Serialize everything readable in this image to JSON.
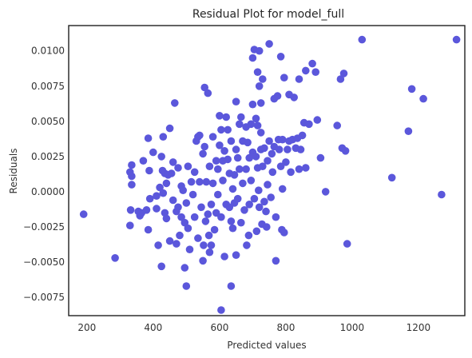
{
  "chart_data": {
    "type": "scatter",
    "title": "Residual Plot for model_full",
    "xlabel": "Predicted values",
    "ylabel": "Residuals",
    "xlim": [
      145,
      1340
    ],
    "ylim": [
      -0.0088,
      0.0118
    ],
    "xticks": [
      200,
      400,
      600,
      800,
      1000,
      1200
    ],
    "xtick_labels": [
      "200",
      "400",
      "600",
      "800",
      "1000",
      "1200"
    ],
    "yticks": [
      -0.0075,
      -0.005,
      -0.0025,
      0.0,
      0.0025,
      0.005,
      0.0075,
      0.01
    ],
    "ytick_labels": [
      "−0.0075",
      "−0.0050",
      "−0.0025",
      "0.0000",
      "0.0025",
      "0.0050",
      "0.0075",
      "0.0100"
    ],
    "grid": false,
    "marker_color": "#5b57db",
    "series": [
      {
        "points": [
          [
            190,
            -0.0016
          ],
          [
            285,
            -0.0047
          ],
          [
            330,
            -0.0024
          ],
          [
            330,
            0.0014
          ],
          [
            332,
            -0.0013
          ],
          [
            335,
            0.0005
          ],
          [
            335,
            0.0011
          ],
          [
            335,
            0.0019
          ],
          [
            355,
            -0.0014
          ],
          [
            360,
            -0.0017
          ],
          [
            365,
            -0.0015
          ],
          [
            370,
            0.0022
          ],
          [
            380,
            -0.0013
          ],
          [
            385,
            0.0038
          ],
          [
            385,
            -0.0027
          ],
          [
            388,
            0.0015
          ],
          [
            390,
            -0.0005
          ],
          [
            400,
            0.0028
          ],
          [
            410,
            -0.0012
          ],
          [
            410,
            -0.0003
          ],
          [
            415,
            -0.0038
          ],
          [
            420,
            0.0003
          ],
          [
            425,
            -0.0053
          ],
          [
            425,
            0.0025
          ],
          [
            428,
            0.0015
          ],
          [
            430,
            0.0039
          ],
          [
            430,
            -0.0001
          ],
          [
            435,
            0.0013
          ],
          [
            435,
            -0.0015
          ],
          [
            440,
            -0.0019
          ],
          [
            440,
            0.0006
          ],
          [
            445,
            0.0012
          ],
          [
            450,
            -0.0035
          ],
          [
            450,
            0.0045
          ],
          [
            455,
            0.0013
          ],
          [
            460,
            -0.0006
          ],
          [
            460,
            0.0021
          ],
          [
            465,
            0.0063
          ],
          [
            470,
            -0.0037
          ],
          [
            470,
            -0.0014
          ],
          [
            475,
            0.0017
          ],
          [
            475,
            -0.0011
          ],
          [
            480,
            -0.0031
          ],
          [
            485,
            0.0004
          ],
          [
            485,
            -0.0018
          ],
          [
            490,
            0.0001
          ],
          [
            495,
            -0.0054
          ],
          [
            495,
            -0.0022
          ],
          [
            500,
            -0.0067
          ],
          [
            500,
            -0.0008
          ],
          [
            505,
            -0.0026
          ],
          [
            505,
            0.0018
          ],
          [
            510,
            -0.0041
          ],
          [
            515,
            0.0007
          ],
          [
            520,
            -0.0002
          ],
          [
            525,
            0.0014
          ],
          [
            525,
            -0.0018
          ],
          [
            530,
            0.0036
          ],
          [
            535,
            0.0039
          ],
          [
            535,
            -0.0033
          ],
          [
            540,
            0.004
          ],
          [
            540,
            0.0007
          ],
          [
            545,
            -0.0011
          ],
          [
            550,
            -0.0049
          ],
          [
            550,
            0.0027
          ],
          [
            552,
            -0.0038
          ],
          [
            555,
            0.0074
          ],
          [
            555,
            0.0032
          ],
          [
            558,
            -0.0021
          ],
          [
            560,
            0.0007
          ],
          [
            565,
            0.007
          ],
          [
            565,
            -0.0016
          ],
          [
            568,
            -0.0031
          ],
          [
            570,
            -0.0043
          ],
          [
            570,
            0.0018
          ],
          [
            575,
            -0.0009
          ],
          [
            575,
            -0.0038
          ],
          [
            580,
            0.0039
          ],
          [
            580,
            0.0006
          ],
          [
            585,
            -0.0027
          ],
          [
            590,
            0.0022
          ],
          [
            590,
            -0.0015
          ],
          [
            595,
            0.0016
          ],
          [
            595,
            -0.0002
          ],
          [
            600,
            0.0054
          ],
          [
            600,
            0.0033
          ],
          [
            605,
            -0.0084
          ],
          [
            605,
            0.0044
          ],
          [
            605,
            -0.0018
          ],
          [
            610,
            0.0022
          ],
          [
            610,
            0.0008
          ],
          [
            615,
            -0.0046
          ],
          [
            615,
            0.0029
          ],
          [
            620,
            0.0053
          ],
          [
            620,
            -0.0009
          ],
          [
            625,
            0.0044
          ],
          [
            625,
            0.0023
          ],
          [
            630,
            0.0013
          ],
          [
            630,
            -0.0011
          ],
          [
            635,
            -0.0067
          ],
          [
            635,
            0.0036
          ],
          [
            635,
            -0.0021
          ],
          [
            640,
            0.0002
          ],
          [
            640,
            -0.0026
          ],
          [
            645,
            0.0012
          ],
          [
            645,
            -0.0008
          ],
          [
            650,
            0.0064
          ],
          [
            650,
            0.003
          ],
          [
            650,
            -0.0045
          ],
          [
            655,
            0.0024
          ],
          [
            655,
            -0.0005
          ],
          [
            660,
            0.0048
          ],
          [
            660,
            0.0016
          ],
          [
            665,
            -0.0022
          ],
          [
            665,
            0.0053
          ],
          [
            670,
            0.0036
          ],
          [
            670,
            0.0006
          ],
          [
            675,
            -0.0013
          ],
          [
            680,
            0.0046
          ],
          [
            680,
            0.0016
          ],
          [
            682,
            -0.0038
          ],
          [
            685,
            0.0035
          ],
          [
            688,
            -0.0031
          ],
          [
            690,
            0.0024
          ],
          [
            690,
            -0.0009
          ],
          [
            695,
            0.0048
          ],
          [
            695,
            0.0008
          ],
          [
            700,
            0.0095
          ],
          [
            700,
            0.0062
          ],
          [
            700,
            0.0028
          ],
          [
            705,
            0.0101
          ],
          [
            705,
            -0.0005
          ],
          [
            710,
            0.0052
          ],
          [
            710,
            0.0025
          ],
          [
            712,
            -0.0028
          ],
          [
            715,
            0.0085
          ],
          [
            715,
            0.0047
          ],
          [
            715,
            0.0017
          ],
          [
            718,
            0.0001
          ],
          [
            720,
            0.01
          ],
          [
            720,
            0.0075
          ],
          [
            720,
            -0.0011
          ],
          [
            725,
            0.0063
          ],
          [
            725,
            0.0042
          ],
          [
            725,
            0.003
          ],
          [
            728,
            -0.0023
          ],
          [
            730,
            0.008
          ],
          [
            730,
            0.0018
          ],
          [
            735,
            0.0031
          ],
          [
            735,
            -0.0007
          ],
          [
            740,
            -0.0014
          ],
          [
            742,
            -0.0025
          ],
          [
            745,
            0.0022
          ],
          [
            745,
            0.0005
          ],
          [
            750,
            0.0105
          ],
          [
            750,
            0.0036
          ],
          [
            755,
            -0.0004
          ],
          [
            758,
            0.0027
          ],
          [
            760,
            0.0014
          ],
          [
            765,
            0.0066
          ],
          [
            765,
            0.0032
          ],
          [
            770,
            -0.0018
          ],
          [
            770,
            -0.0049
          ],
          [
            775,
            0.0068
          ],
          [
            778,
            0.0037
          ],
          [
            780,
            0.003
          ],
          [
            785,
            0.0096
          ],
          [
            785,
            0.0018
          ],
          [
            788,
            -0.0027
          ],
          [
            790,
            0.0037
          ],
          [
            790,
            0.0002
          ],
          [
            795,
            0.0081
          ],
          [
            795,
            -0.0029
          ],
          [
            800,
            0.0021
          ],
          [
            805,
            0.003
          ],
          [
            810,
            0.0069
          ],
          [
            810,
            0.0036
          ],
          [
            815,
            0.0014
          ],
          [
            820,
            0.0037
          ],
          [
            825,
            0.0067
          ],
          [
            830,
            0.0031
          ],
          [
            835,
            0.0038
          ],
          [
            840,
            0.008
          ],
          [
            840,
            0.0016
          ],
          [
            845,
            0.003
          ],
          [
            850,
            0.004
          ],
          [
            855,
            0.0049
          ],
          [
            860,
            0.0086
          ],
          [
            860,
            0.0017
          ],
          [
            870,
            0.0048
          ],
          [
            880,
            0.0091
          ],
          [
            890,
            0.0085
          ],
          [
            895,
            0.0051
          ],
          [
            905,
            0.0024
          ],
          [
            920,
            0.0
          ],
          [
            955,
            0.0047
          ],
          [
            965,
            0.008
          ],
          [
            970,
            0.0031
          ],
          [
            975,
            0.0084
          ],
          [
            980,
            0.0029
          ],
          [
            985,
            -0.0037
          ],
          [
            1030,
            0.0108
          ],
          [
            1120,
            0.001
          ],
          [
            1170,
            0.0043
          ],
          [
            1180,
            0.0073
          ],
          [
            1215,
            0.0066
          ],
          [
            1270,
            -0.0002
          ],
          [
            1315,
            0.0108
          ]
        ]
      }
    ]
  }
}
